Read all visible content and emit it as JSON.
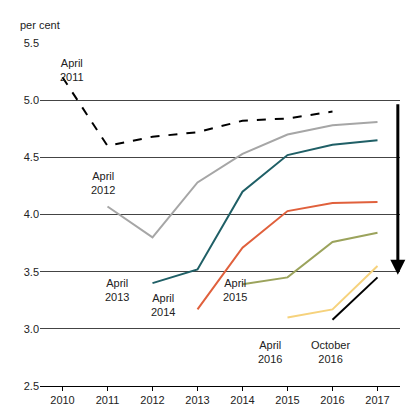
{
  "chart_data": {
    "type": "line",
    "y_label": "per cent",
    "xlim": [
      2009.5,
      2017.5
    ],
    "xticks": [
      2010,
      2011,
      2012,
      2013,
      2014,
      2015,
      2016,
      2017
    ],
    "ylim": [
      2.5,
      5.5
    ],
    "yticks": [
      2.5,
      {
        "value": 3,
        "label": "3.0"
      },
      3.5,
      {
        "value": 4,
        "label": "4.0"
      },
      4.5,
      {
        "value": 5,
        "label": "5.0"
      },
      5.5
    ],
    "grid": true,
    "series": [
      {
        "name": "April 2011",
        "color": "#000000",
        "line_style": "dash",
        "x": [
          2010,
          2011,
          2012,
          2013,
          2014,
          2015,
          2016
        ],
        "values": [
          5.2,
          4.6,
          4.68,
          4.72,
          4.82,
          4.84,
          4.9
        ]
      },
      {
        "name": "April 2012",
        "color": "#a6a6a6",
        "line_style": "solid",
        "x": [
          2011,
          2012,
          2013,
          2014,
          2015,
          2016,
          2017
        ],
        "values": [
          4.07,
          3.8,
          4.28,
          4.53,
          4.7,
          4.78,
          4.81
        ]
      },
      {
        "name": "April 2013",
        "color": "#1f5f66",
        "line_style": "solid",
        "x": [
          2012,
          2013,
          2014,
          2015,
          2016,
          2017
        ],
        "values": [
          3.4,
          3.52,
          4.2,
          4.52,
          4.61,
          4.65
        ]
      },
      {
        "name": "April 2014",
        "color": "#e0603c",
        "line_style": "solid",
        "x": [
          2013,
          2014,
          2015,
          2016,
          2017
        ],
        "values": [
          3.17,
          3.71,
          4.03,
          4.1,
          4.11
        ]
      },
      {
        "name": "April 2015",
        "color": "#9ba35c",
        "line_style": "solid",
        "x": [
          2014,
          2015,
          2016,
          2017
        ],
        "values": [
          3.39,
          3.45,
          3.76,
          3.84
        ]
      },
      {
        "name": "April 2016",
        "color": "#f6d27c",
        "line_style": "solid",
        "x": [
          2015,
          2016,
          2017
        ],
        "values": [
          3.1,
          3.17,
          3.55
        ]
      },
      {
        "name": "October 2016",
        "color": "#000000",
        "line_style": "solid",
        "x": [
          2016,
          2017
        ],
        "values": [
          3.08,
          3.45
        ]
      }
    ]
  }
}
